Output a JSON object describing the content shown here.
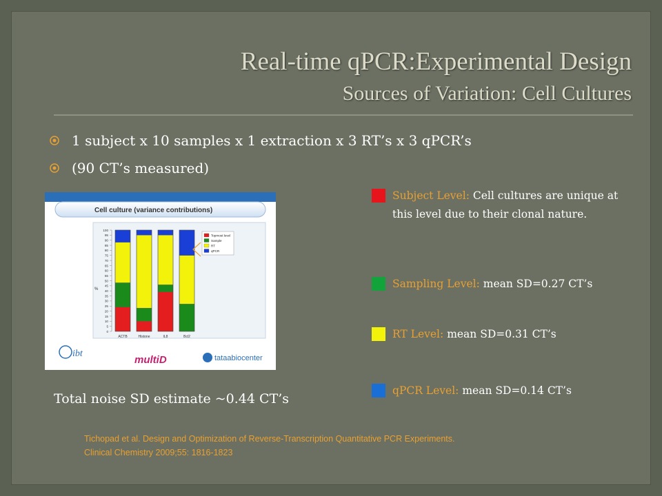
{
  "title": {
    "line1": "Real-time qPCR:Experimental Design",
    "line2": "Sources of Variation: Cell Cultures"
  },
  "bullets": [
    "1 subject x 10 samples x 1 extraction x 3 RT’s x 3 qPCR’s",
    "(90 CT’s measured)"
  ],
  "chart_data": {
    "type": "bar",
    "stacked": true,
    "title": "Cell culture (variance contributions)",
    "xlabel": "",
    "ylabel": "%",
    "ylim": [
      0,
      100
    ],
    "yticks": [
      0,
      5,
      10,
      15,
      20,
      25,
      30,
      35,
      40,
      45,
      50,
      55,
      60,
      65,
      70,
      75,
      80,
      85,
      90,
      95,
      100
    ],
    "categories": [
      "ACTB",
      "Histone",
      "IL8",
      "Bcl2"
    ],
    "legend_position": "top-right",
    "series": [
      {
        "name": "Topmost level",
        "color": "#e41e1e",
        "values": [
          24,
          10,
          39,
          0
        ]
      },
      {
        "name": "Sample",
        "color": "#1a8a1a",
        "values": [
          24,
          13,
          7,
          27
        ]
      },
      {
        "name": "RT",
        "color": "#f2f20a",
        "values": [
          40,
          72,
          49,
          48
        ]
      },
      {
        "name": "qPCR",
        "color": "#1a3fd6",
        "values": [
          12,
          5,
          5,
          25
        ]
      }
    ]
  },
  "chart_logos": {
    "ibt": "ibt",
    "multid": "multiD",
    "tataa": "tataabiocenter"
  },
  "legend": [
    {
      "color": "#e8141c",
      "label": "Subject Level:",
      "text": "Cell cultures  are unique at this level due to their clonal nature."
    },
    {
      "color": "#12a33a",
      "label": "Sampling Level:",
      "text": "mean SD=0.27 CT’s"
    },
    {
      "color": "#f2f20a",
      "label": "RT Level:",
      "text": "mean SD=0.31 CT’s"
    },
    {
      "color": "#1a6fd6",
      "label": "qPCR Level:",
      "text": "mean SD=0.14 CT’s"
    }
  ],
  "noise_estimate": "Total noise SD estimate ~0.44 CT’s",
  "citation": {
    "line1": "Tichopad  et al. Design and Optimization of Reverse-Transcription Quantitative PCR Experiments.",
    "line2": "Clinical Chemistry  2009;55: 1816-1823"
  },
  "colors": {
    "background": "#6b7062",
    "title": "#dcdcc8",
    "accent": "#e8a033"
  }
}
